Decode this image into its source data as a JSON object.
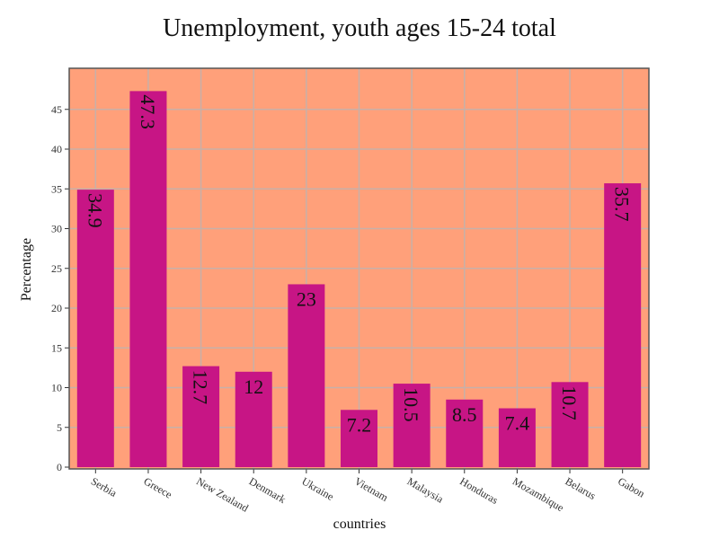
{
  "chart_data": {
    "type": "bar",
    "title": "Unemployment, youth ages 15-24 total",
    "xlabel": "countries",
    "ylabel": "Percentage",
    "categories": [
      "Serbia",
      "Greece",
      "New Zealand",
      "Denmark",
      "Ukraine",
      "Vietnam",
      "Malaysia",
      "Honduras",
      "Mozambique",
      "Belarus",
      "Gabon"
    ],
    "values": [
      34.9,
      47.3,
      12.7,
      12,
      23,
      7.2,
      10.5,
      8.5,
      7.4,
      10.7,
      35.7
    ],
    "value_labels": [
      "34.9",
      "47.3",
      "12.7",
      "12",
      "23",
      "7.2",
      "10.5",
      "8.5",
      "7.4",
      "10.7",
      "35.7"
    ],
    "label_rotated": [
      true,
      true,
      true,
      false,
      false,
      false,
      true,
      false,
      false,
      true,
      true
    ],
    "ylim": [
      0,
      50
    ],
    "yticks": [
      0,
      5,
      10,
      15,
      20,
      25,
      30,
      35,
      40,
      45
    ],
    "grid": true,
    "colors": {
      "bar": "#c71585",
      "plot_bg": "#ffa07a",
      "grid": "#c8b0a8",
      "frame": "#555555"
    }
  }
}
